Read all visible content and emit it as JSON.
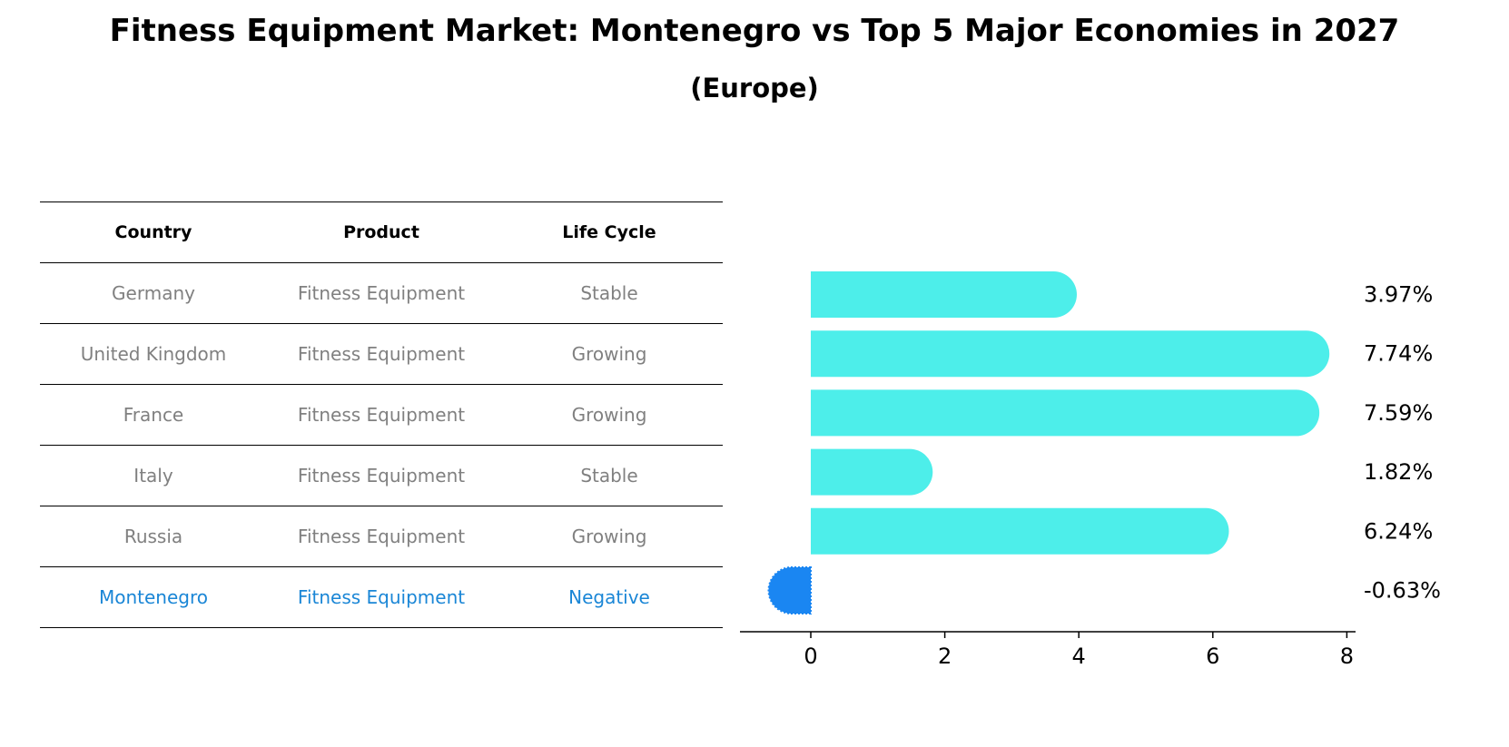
{
  "title": "Fitness Equipment Market: Montenegro vs Top 5 Major Economies in 2027",
  "subtitle": "(Europe)",
  "table": {
    "headers": [
      "Country",
      "Product",
      "Life Cycle"
    ],
    "rows": [
      [
        "Germany",
        "Fitness Equipment",
        "Stable"
      ],
      [
        "United Kingdom",
        "Fitness Equipment",
        "Growing"
      ],
      [
        "France",
        "Fitness Equipment",
        "Growing"
      ],
      [
        "Italy",
        "Fitness Equipment",
        "Stable"
      ],
      [
        "Russia",
        "Fitness Equipment",
        "Growing"
      ],
      [
        "Montenegro",
        "Fitness Equipment",
        "Negative"
      ]
    ],
    "highlight_row": 5,
    "highlight_color": "#1a86d6"
  },
  "chart_data": {
    "type": "bar",
    "orientation": "horizontal",
    "categories": [
      "Germany",
      "United Kingdom",
      "France",
      "Italy",
      "Russia",
      "Montenegro"
    ],
    "values": [
      3.97,
      7.74,
      7.59,
      1.82,
      6.24,
      -0.63
    ],
    "value_labels": [
      "3.97%",
      "7.74%",
      "7.59%",
      "1.82%",
      "6.24%",
      "-0.63%"
    ],
    "colors": [
      "#4deeea",
      "#4deeea",
      "#4deeea",
      "#4deeea",
      "#4deeea",
      "#1a86f2"
    ],
    "xticks": [
      "0",
      "2",
      "4",
      "6",
      "8"
    ],
    "xlim": [
      -1.05,
      8.15
    ],
    "grid": false
  }
}
